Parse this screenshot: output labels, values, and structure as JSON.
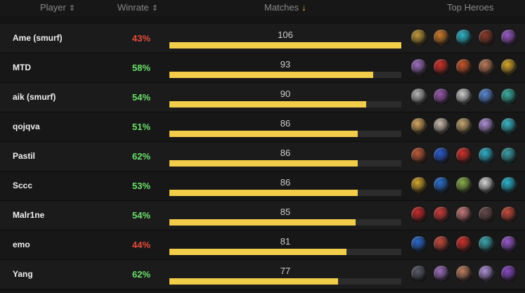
{
  "header": {
    "player_label": "Player",
    "winrate_label": "Winrate",
    "matches_label": "Matches",
    "heroes_label": "Top Heroes"
  },
  "colors": {
    "winrate_low": "#e34b3a",
    "winrate_high": "#6be06b",
    "bar": "#f2cd4a",
    "bar_track": "#2c2c2c"
  },
  "max_matches": 106,
  "rows": [
    {
      "player": "Ame (smurf)",
      "winrate": "43%",
      "winrate_status": "low",
      "matches": "106",
      "matches_value": 106,
      "heroes": [
        {
          "name": "gold-bearded-hero-icon",
          "color": "#c49a3a"
        },
        {
          "name": "orange-beast-hero-icon",
          "color": "#d07a2a"
        },
        {
          "name": "cyan-mask-hero-icon",
          "color": "#2fb7c9"
        },
        {
          "name": "dark-warrior-hero-icon",
          "color": "#8a3a2a"
        },
        {
          "name": "purple-demon-hero-icon",
          "color": "#9a5ac8"
        }
      ]
    },
    {
      "player": "MTD",
      "winrate": "58%",
      "winrate_status": "high",
      "matches": "93",
      "matches_value": 93,
      "heroes": [
        {
          "name": "purple-horned-hero-icon",
          "color": "#a070c0"
        },
        {
          "name": "red-armor-hero-icon",
          "color": "#d0302a"
        },
        {
          "name": "redhead-hero-icon",
          "color": "#c8552a"
        },
        {
          "name": "flesh-beast-hero-icon",
          "color": "#c07a5a"
        },
        {
          "name": "golden-flame-hero-icon",
          "color": "#d8a82a"
        }
      ]
    },
    {
      "player": "aik (smurf)",
      "winrate": "54%",
      "winrate_status": "high",
      "matches": "90",
      "matches_value": 90,
      "heroes": [
        {
          "name": "skull-hero-icon",
          "color": "#b8b8b8"
        },
        {
          "name": "violet-shade-hero-icon",
          "color": "#9a5ab0"
        },
        {
          "name": "white-helm-hero-icon",
          "color": "#d0d0d0"
        },
        {
          "name": "blue-haired-hero-icon",
          "color": "#5a8ad8"
        },
        {
          "name": "teal-golden-hero-icon",
          "color": "#3ab0a0"
        }
      ]
    },
    {
      "player": "qojqva",
      "winrate": "51%",
      "winrate_status": "high",
      "matches": "86",
      "matches_value": 86,
      "heroes": [
        {
          "name": "blonde-hero-icon",
          "color": "#d8a860"
        },
        {
          "name": "pale-mage-hero-icon",
          "color": "#d0c0b0"
        },
        {
          "name": "tan-monk-hero-icon",
          "color": "#c8a870"
        },
        {
          "name": "lavender-ghost-hero-icon",
          "color": "#b090d8"
        },
        {
          "name": "cyan-tidal-hero-icon",
          "color": "#3ab8c8"
        }
      ]
    },
    {
      "player": "Pastil",
      "winrate": "62%",
      "winrate_status": "high",
      "matches": "86",
      "matches_value": 86,
      "heroes": [
        {
          "name": "horned-jester-hero-icon",
          "color": "#c05a3a"
        },
        {
          "name": "blue-hood-hero-icon",
          "color": "#2a5ad0"
        },
        {
          "name": "red-demon-hero-icon",
          "color": "#d0302a"
        },
        {
          "name": "aqua-spirit-hero-icon",
          "color": "#2fb0c8"
        },
        {
          "name": "teal-tusk-hero-icon",
          "color": "#3aa0a8"
        }
      ]
    },
    {
      "player": "Sccc",
      "winrate": "53%",
      "winrate_status": "high",
      "matches": "86",
      "matches_value": 86,
      "heroes": [
        {
          "name": "gold-crown-hero-icon",
          "color": "#d8a82a"
        },
        {
          "name": "blue-wing-hero-icon",
          "color": "#2a70d0"
        },
        {
          "name": "green-gold-hero-icon",
          "color": "#8ab04a"
        },
        {
          "name": "white-beard-hero-icon",
          "color": "#d8d8d8"
        },
        {
          "name": "cyan-orb-hero-icon",
          "color": "#2ab8d0"
        }
      ]
    },
    {
      "player": "Malr1ne",
      "winrate": "54%",
      "winrate_status": "high",
      "matches": "85",
      "matches_value": 85,
      "heroes": [
        {
          "name": "crimson-brute-hero-icon",
          "color": "#c82a2a"
        },
        {
          "name": "red-helm-hero-icon",
          "color": "#d03a3a"
        },
        {
          "name": "pink-beast-hero-icon",
          "color": "#c87a7a"
        },
        {
          "name": "shadow-horn-hero-icon",
          "color": "#6a4a4a"
        },
        {
          "name": "red-sorceress-hero-icon",
          "color": "#c84a3a"
        }
      ]
    },
    {
      "player": "emo",
      "winrate": "44%",
      "winrate_status": "low",
      "matches": "81",
      "matches_value": 81,
      "heroes": [
        {
          "name": "blue-dragon-hero-icon",
          "color": "#2a6ad0"
        },
        {
          "name": "scarlet-jester-hero-icon",
          "color": "#c84a3a"
        },
        {
          "name": "red-goggles-hero-icon",
          "color": "#d0302a"
        },
        {
          "name": "teal-turban-hero-icon",
          "color": "#3aa8b0"
        },
        {
          "name": "violet-mage-hero-icon",
          "color": "#9a5ad0"
        }
      ]
    },
    {
      "player": "Yang",
      "winrate": "62%",
      "winrate_status": "high",
      "matches": "77",
      "matches_value": 77,
      "heroes": [
        {
          "name": "dark-hood-hero-icon",
          "color": "#5a5a6a"
        },
        {
          "name": "horned-violet-hero-icon",
          "color": "#a070c0"
        },
        {
          "name": "flesh-ogre-hero-icon",
          "color": "#c08060"
        },
        {
          "name": "lilac-ghost-hero-icon",
          "color": "#b090d8"
        },
        {
          "name": "purple-void-hero-icon",
          "color": "#8a4ac8"
        }
      ]
    }
  ]
}
